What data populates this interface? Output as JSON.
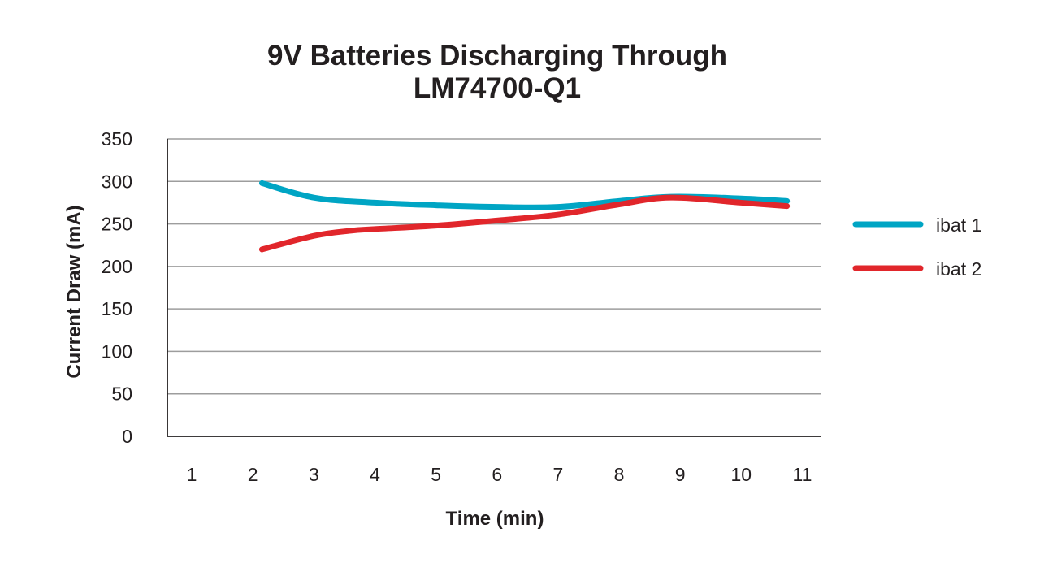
{
  "chart_data": {
    "type": "line",
    "title": [
      "9V Batteries Discharging Through",
      "LM74700-Q1"
    ],
    "xlabel": "Time (min)",
    "ylabel": "Current Draw (mA)",
    "x_ticks": [
      "1",
      "2",
      "3",
      "4",
      "5",
      "6",
      "7",
      "8",
      "9",
      "10",
      "11"
    ],
    "y_ticks": [
      "0",
      "50",
      "100",
      "150",
      "200",
      "250",
      "300",
      "350"
    ],
    "xlim": [
      0.6,
      11.3
    ],
    "ylim": [
      0,
      350
    ],
    "grid": true,
    "legend_position": "right",
    "series": [
      {
        "name": "ibat 1",
        "color": "#00a5c4",
        "x": [
          2.15,
          3,
          4,
          5,
          6,
          7,
          8,
          8.85,
          10,
          10.75
        ],
        "values": [
          298,
          281,
          275,
          272,
          270,
          270,
          277,
          282,
          280,
          277
        ]
      },
      {
        "name": "ibat 2",
        "color": "#e1262b",
        "x": [
          2.15,
          3,
          3.6,
          4,
          5,
          6,
          7,
          8,
          8.85,
          10,
          10.75
        ],
        "values": [
          220,
          236,
          242,
          244,
          248,
          254,
          261,
          273,
          281,
          275,
          271
        ]
      }
    ]
  }
}
